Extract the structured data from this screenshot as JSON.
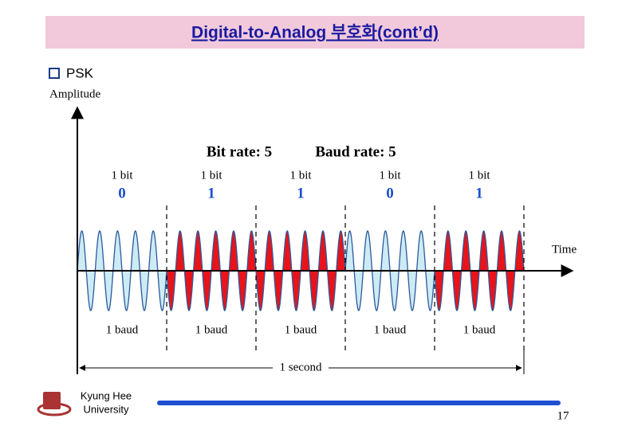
{
  "title": "Digital-to-Analog 부호화(cont’d)",
  "bullet": "PSK",
  "diagram": {
    "y_axis_label": "Amplitude",
    "x_axis_label": "Time",
    "bit_rate": "Bit rate: 5",
    "baud_rate": "Baud rate: 5",
    "bit_labels": [
      "1 bit",
      "1 bit",
      "1 bit",
      "1 bit",
      "1 bit"
    ],
    "bits": [
      "0",
      "1",
      "1",
      "0",
      "1"
    ],
    "baud_labels": [
      "1 baud",
      "1 baud",
      "1 baud",
      "1 baud",
      "1 baud"
    ],
    "duration_label": "1 second"
  },
  "footer": {
    "university": [
      "Kyung Hee",
      "University"
    ],
    "page": "17"
  }
}
